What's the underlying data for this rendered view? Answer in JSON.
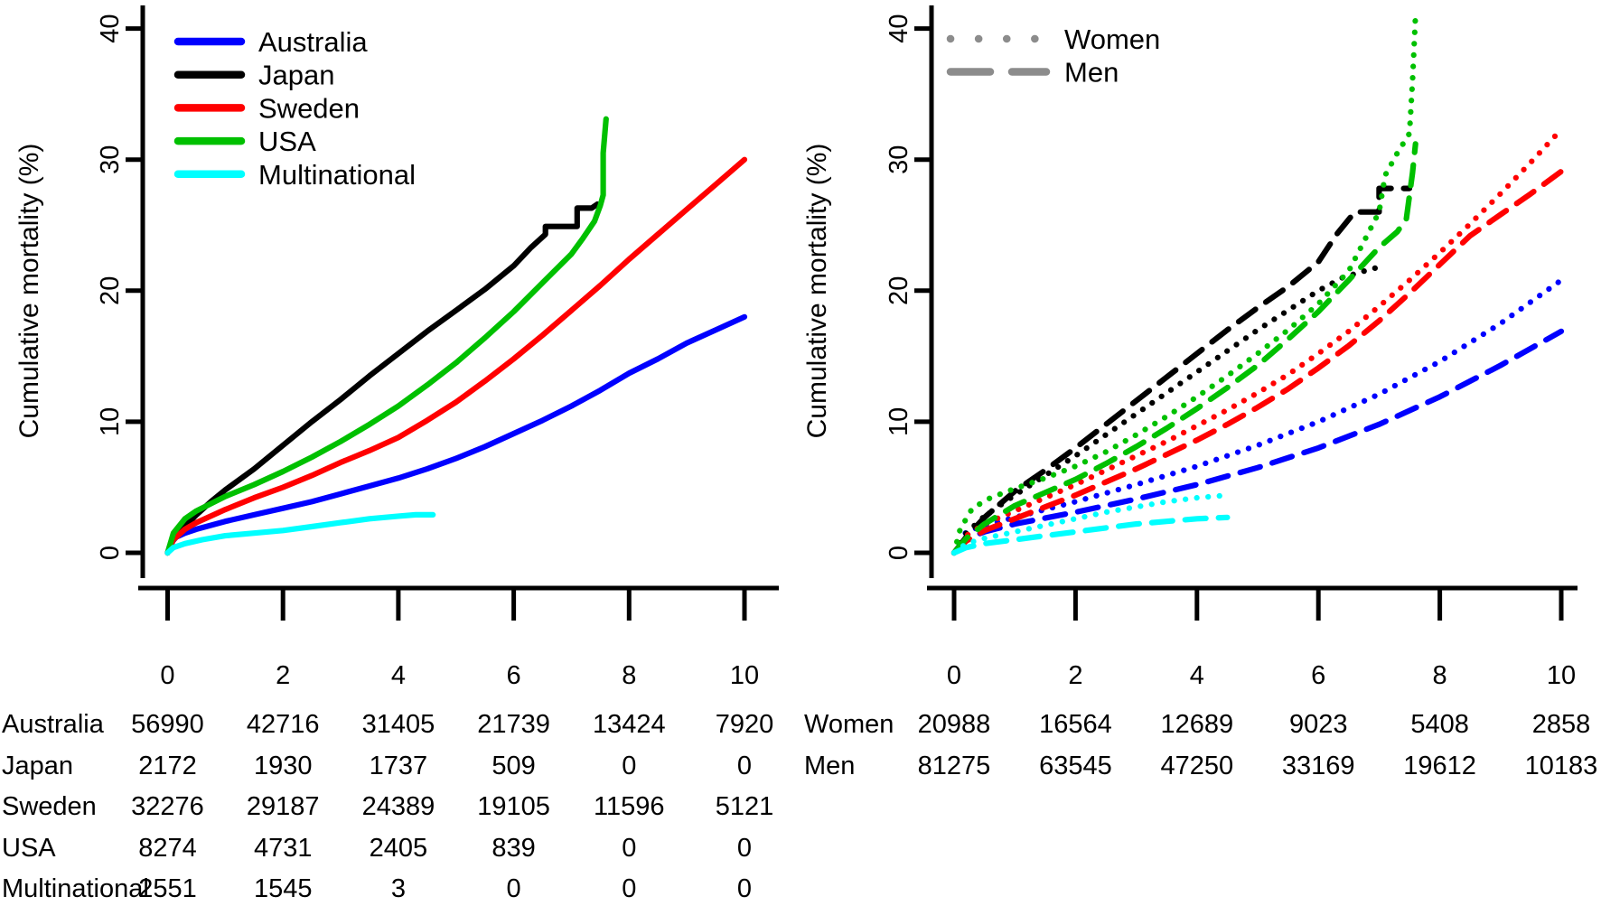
{
  "figure": {
    "background": "#ffffff",
    "text_color": "#000000",
    "ylabel": "Cumulative mortality (%)"
  },
  "chart_data": [
    {
      "type": "line",
      "panel": "by-country",
      "title": "",
      "xlabel": "",
      "ylabel": "Cumulative mortality (%)",
      "xlim": [
        0,
        10.5
      ],
      "ylim": [
        0,
        41
      ],
      "x_ticks": [
        0,
        2,
        4,
        6,
        8,
        10
      ],
      "y_ticks": [
        0,
        10,
        20,
        30,
        40
      ],
      "grid": false,
      "legend_position": "top-left",
      "series": [
        {
          "name": "Australia",
          "color": "#0000FF",
          "linetype": "solid",
          "x": [
            0,
            0.05,
            0.15,
            0.3,
            0.5,
            1,
            1.5,
            2,
            2.5,
            3,
            3.5,
            4,
            4.5,
            5,
            5.5,
            6,
            6.5,
            7,
            7.5,
            8,
            8.5,
            9,
            9.5,
            10
          ],
          "y": [
            0,
            0.7,
            1.2,
            1.5,
            1.8,
            2.4,
            2.9,
            3.4,
            3.9,
            4.5,
            5.1,
            5.7,
            6.4,
            7.2,
            8.1,
            9.1,
            10.1,
            11.2,
            12.4,
            13.7,
            14.8,
            16.0,
            17.0,
            18.0
          ]
        },
        {
          "name": "Japan",
          "color": "#000000",
          "linetype": "solid",
          "x": [
            0,
            0.1,
            0.3,
            0.5,
            0.75,
            1,
            1.5,
            2,
            2.5,
            3,
            3.5,
            4,
            4.5,
            5,
            5.5,
            6,
            6.3,
            6.55,
            6.55,
            6.9,
            7.1,
            7.1,
            7.35,
            7.45
          ],
          "y": [
            0,
            1.0,
            2.0,
            2.9,
            3.9,
            4.8,
            6.4,
            8.2,
            10.0,
            11.7,
            13.5,
            15.2,
            16.9,
            18.5,
            20.1,
            21.9,
            23.3,
            24.3,
            24.9,
            24.9,
            24.9,
            26.3,
            26.3,
            26.6
          ]
        },
        {
          "name": "Sweden",
          "color": "#FF0000",
          "linetype": "solid",
          "x": [
            0,
            0.1,
            0.3,
            0.5,
            1,
            1.5,
            2,
            2.5,
            3,
            3.5,
            4,
            4.5,
            5,
            5.5,
            6,
            6.5,
            7,
            7.5,
            8,
            8.5,
            9,
            9.5,
            10
          ],
          "y": [
            0,
            1.0,
            1.8,
            2.3,
            3.3,
            4.2,
            5.0,
            5.9,
            6.9,
            7.8,
            8.8,
            10.1,
            11.5,
            13.1,
            14.8,
            16.6,
            18.5,
            20.4,
            22.4,
            24.3,
            26.2,
            28.1,
            30.0
          ]
        },
        {
          "name": "USA",
          "color": "#00C000",
          "linetype": "solid",
          "x": [
            0,
            0.1,
            0.3,
            0.5,
            1,
            1.5,
            2,
            2.5,
            3,
            3.5,
            4,
            4.5,
            5,
            5.5,
            6,
            6.5,
            7,
            7.2,
            7.4,
            7.5,
            7.55,
            7.55,
            7.6
          ],
          "y": [
            0,
            1.5,
            2.6,
            3.2,
            4.3,
            5.2,
            6.2,
            7.3,
            8.5,
            9.8,
            11.2,
            12.8,
            14.5,
            16.4,
            18.4,
            20.6,
            22.8,
            24.0,
            25.3,
            26.5,
            27.3,
            30.5,
            33.1
          ]
        },
        {
          "name": "Multinational",
          "color": "#00FFFF",
          "linetype": "solid",
          "x": [
            0,
            0.1,
            0.3,
            0.6,
            1,
            1.5,
            2,
            2.5,
            3,
            3.5,
            4,
            4.3,
            4.6
          ],
          "y": [
            0,
            0.4,
            0.7,
            1.0,
            1.3,
            1.5,
            1.7,
            2.0,
            2.3,
            2.6,
            2.8,
            2.9,
            2.9
          ]
        }
      ],
      "risk_table": {
        "columns": [
          0,
          2,
          4,
          6,
          8,
          10
        ],
        "rows": [
          {
            "label": "Australia",
            "values": [
              56990,
              42716,
              31405,
              21739,
              13424,
              7920
            ]
          },
          {
            "label": "Japan",
            "values": [
              2172,
              1930,
              1737,
              509,
              0,
              0
            ]
          },
          {
            "label": "Sweden",
            "values": [
              32276,
              29187,
              24389,
              19105,
              11596,
              5121
            ]
          },
          {
            "label": "USA",
            "values": [
              8274,
              4731,
              2405,
              839,
              0,
              0
            ]
          },
          {
            "label": "Multinational",
            "values": [
              2551,
              1545,
              3,
              0,
              0,
              0
            ]
          }
        ]
      }
    },
    {
      "type": "line",
      "panel": "by-sex",
      "title": "",
      "xlabel": "",
      "ylabel": "Cumulative mortality (%)",
      "xlim": [
        0,
        10.5
      ],
      "ylim": [
        0,
        41
      ],
      "x_ticks": [
        0,
        2,
        4,
        6,
        8,
        10
      ],
      "y_ticks": [
        0,
        10,
        20,
        30,
        40
      ],
      "grid": false,
      "legend_position": "top-left",
      "legend_color": "#8C8C8C",
      "legend": [
        {
          "label": "Women",
          "linetype": "dotted"
        },
        {
          "label": "Men",
          "linetype": "dashed"
        }
      ],
      "series": [
        {
          "name": "Australia Women",
          "color": "#0000FF",
          "linetype": "dotted",
          "x": [
            0,
            0.2,
            0.5,
            1,
            2,
            3,
            4,
            5,
            6,
            7,
            8,
            9,
            10
          ],
          "y": [
            0,
            1.6,
            2.1,
            2.7,
            3.9,
            5.2,
            6.6,
            8.2,
            10.0,
            12.1,
            14.6,
            17.5,
            20.8
          ]
        },
        {
          "name": "Australia Men",
          "color": "#0000FF",
          "linetype": "dashed",
          "x": [
            0,
            0.2,
            0.5,
            1,
            2,
            3,
            4,
            5,
            6,
            7,
            8,
            9,
            10
          ],
          "y": [
            0,
            1.1,
            1.6,
            2.2,
            3.1,
            4.1,
            5.2,
            6.5,
            8.0,
            9.8,
            11.9,
            14.3,
            16.9
          ]
        },
        {
          "name": "Japan Women",
          "color": "#000000",
          "linetype": "dotted",
          "x": [
            0,
            0.2,
            0.5,
            1,
            1.5,
            2,
            2.5,
            3,
            3.5,
            4,
            4.5,
            5,
            5.5,
            6,
            6.4,
            6.9,
            7.1
          ],
          "y": [
            0,
            1.5,
            2.8,
            4.4,
            5.9,
            7.4,
            9.0,
            10.6,
            12.2,
            13.8,
            15.4,
            17.0,
            18.5,
            20.0,
            21.0,
            21.7,
            21.8
          ]
        },
        {
          "name": "Japan Men",
          "color": "#000000",
          "linetype": "dashed",
          "x": [
            0,
            0.2,
            0.5,
            1,
            1.5,
            2,
            2.5,
            3,
            3.5,
            4,
            4.5,
            5,
            5.5,
            6,
            6.3,
            6.6,
            6.6,
            7.0,
            7.0,
            7.5
          ],
          "y": [
            0,
            1.2,
            2.7,
            4.7,
            6.3,
            8.0,
            9.8,
            11.6,
            13.4,
            15.2,
            17.0,
            18.7,
            20.3,
            22.2,
            24.3,
            26.0,
            26.0,
            26.0,
            27.8,
            27.8
          ]
        },
        {
          "name": "Sweden Women",
          "color": "#FF0000",
          "linetype": "dotted",
          "x": [
            0,
            0.2,
            0.5,
            1,
            1.5,
            2,
            2.5,
            3,
            3.5,
            4,
            4.5,
            5,
            5.5,
            6,
            6.5,
            7,
            7.5,
            8,
            8.5,
            9,
            9.5,
            10
          ],
          "y": [
            0,
            1.3,
            2.2,
            3.2,
            4.2,
            5.2,
            6.3,
            7.4,
            8.5,
            9.7,
            10.9,
            12.2,
            13.6,
            15.2,
            16.9,
            18.8,
            20.8,
            22.9,
            25.1,
            27.4,
            29.8,
            32.3
          ]
        },
        {
          "name": "Sweden Men",
          "color": "#FF0000",
          "linetype": "dashed",
          "x": [
            0,
            0.2,
            0.5,
            1,
            1.5,
            2,
            2.5,
            3,
            3.5,
            4,
            4.5,
            5,
            5.5,
            6,
            6.5,
            7,
            7.5,
            8,
            8.5,
            9,
            9.5,
            10
          ],
          "y": [
            0,
            0.9,
            1.7,
            2.6,
            3.5,
            4.4,
            5.4,
            6.4,
            7.5,
            8.6,
            9.8,
            11.1,
            12.5,
            14.1,
            15.8,
            17.7,
            19.8,
            22.0,
            24.2,
            25.8,
            27.4,
            29.1
          ]
        },
        {
          "name": "USA Women",
          "color": "#00C000",
          "linetype": "dotted",
          "x": [
            0,
            0.1,
            0.3,
            0.6,
            1,
            1.5,
            2,
            2.5,
            3,
            3.5,
            4,
            4.5,
            5,
            5.5,
            6,
            6.5,
            7,
            7.1,
            7.3,
            7.5,
            7.55,
            7.6,
            7.62
          ],
          "y": [
            0,
            1.8,
            3.4,
            4.2,
            4.9,
            5.7,
            6.6,
            7.7,
            9.0,
            10.4,
            11.9,
            13.5,
            15.2,
            17.0,
            19.0,
            21.5,
            26.0,
            28.8,
            30.5,
            32.0,
            36.0,
            41.0,
            41.2
          ]
        },
        {
          "name": "USA Men",
          "color": "#00C000",
          "linetype": "dashed",
          "x": [
            0,
            0.2,
            0.5,
            1,
            1.5,
            2,
            2.5,
            3,
            3.5,
            4,
            4.5,
            5,
            5.5,
            6,
            6.5,
            7,
            7.3,
            7.45,
            7.55,
            7.6
          ],
          "y": [
            0,
            1.1,
            2.2,
            3.6,
            4.6,
            5.6,
            6.8,
            8.1,
            9.5,
            11.0,
            12.6,
            14.3,
            16.3,
            18.4,
            20.8,
            23.3,
            24.5,
            25.5,
            29.0,
            31.2
          ]
        },
        {
          "name": "Multinational Women",
          "color": "#00FFFF",
          "linetype": "dotted",
          "x": [
            0,
            0.2,
            0.5,
            1,
            1.5,
            2,
            2.5,
            3,
            3.5,
            4,
            4.5
          ],
          "y": [
            0,
            0.7,
            1.1,
            1.6,
            2.1,
            2.6,
            3.1,
            3.5,
            3.9,
            4.2,
            4.4
          ]
        },
        {
          "name": "Multinational Men",
          "color": "#00FFFF",
          "linetype": "dashed",
          "x": [
            0,
            0.2,
            0.5,
            1,
            1.5,
            2,
            2.5,
            3,
            3.5,
            4,
            4.5
          ],
          "y": [
            0,
            0.4,
            0.7,
            1.0,
            1.3,
            1.6,
            1.9,
            2.2,
            2.4,
            2.6,
            2.7
          ]
        }
      ],
      "risk_table": {
        "columns": [
          0,
          2,
          4,
          6,
          8,
          10
        ],
        "rows": [
          {
            "label": "Women",
            "values": [
              20988,
              16564,
              12689,
              9023,
              5408,
              2858
            ]
          },
          {
            "label": "Men",
            "values": [
              81275,
              63545,
              47250,
              33169,
              19612,
              10183
            ]
          }
        ]
      }
    }
  ]
}
